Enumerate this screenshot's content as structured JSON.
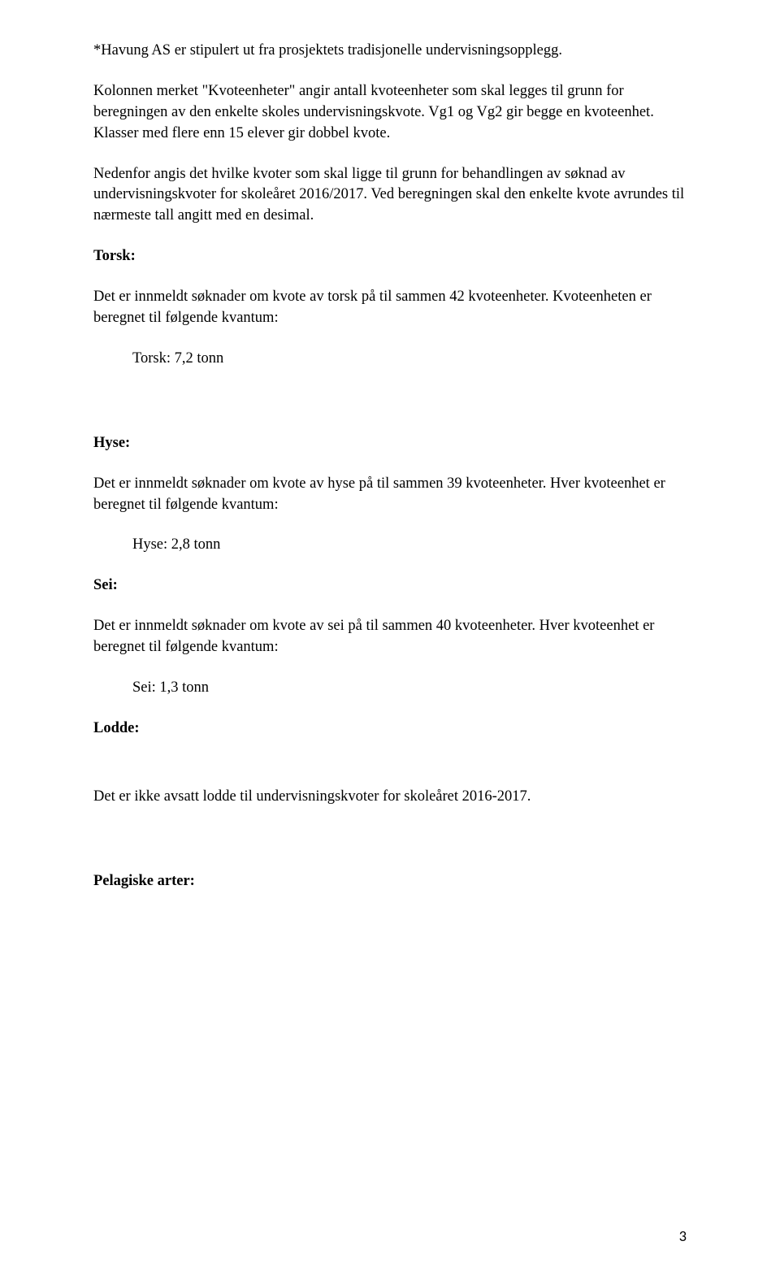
{
  "intro": {
    "p1": "*Havung AS er stipulert ut fra prosjektets tradisjonelle undervisningsopplegg.",
    "p2": "Kolonnen merket \"Kvoteenheter\" angir antall kvoteenheter som skal legges til grunn for beregningen av den enkelte skoles undervisningskvote. Vg1 og Vg2 gir begge en kvoteenhet. Klasser med flere enn 15 elever gir dobbel kvote.",
    "p3": "Nedenfor angis det hvilke kvoter som skal ligge til grunn for behandlingen av søknad av undervisningskvoter for skoleåret 2016/2017. Ved beregningen skal den enkelte kvote avrundes til nærmeste tall angitt med en desimal."
  },
  "torsk": {
    "heading": "Torsk:",
    "body": "Det er innmeldt søknader om kvote av torsk på til sammen 42 kvoteenheter. Kvoteenheten er beregnet til følgende kvantum:",
    "value": "Torsk: 7,2 tonn"
  },
  "hyse": {
    "heading": "Hyse:",
    "body": "Det er innmeldt søknader om kvote av hyse på til sammen 39 kvoteenheter. Hver kvoteenhet er beregnet til følgende kvantum:",
    "value": "Hyse: 2,8 tonn"
  },
  "sei": {
    "heading": "Sei:",
    "body": "Det er innmeldt søknader om kvote av sei på til sammen 40 kvoteenheter. Hver kvoteenhet er beregnet til følgende kvantum:",
    "value": "Sei: 1,3 tonn"
  },
  "lodde": {
    "heading": "Lodde:",
    "body": "Det er ikke avsatt lodde til undervisningskvoter for skoleåret 2016-2017."
  },
  "pelagiske": {
    "heading": "Pelagiske arter:"
  },
  "page_number": "3"
}
